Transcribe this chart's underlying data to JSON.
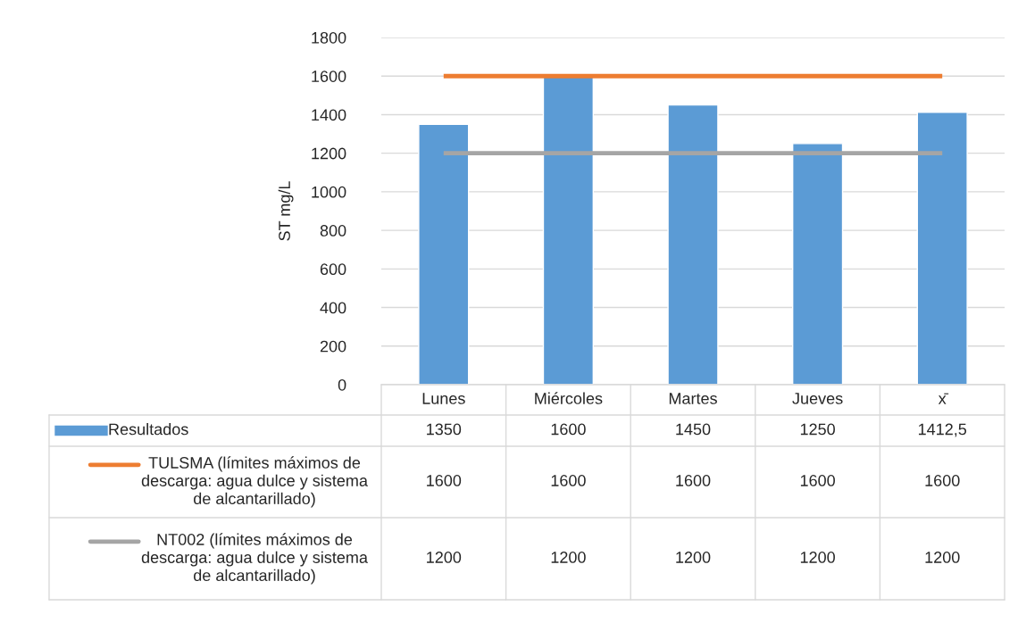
{
  "chart_data": {
    "type": "bar",
    "ylabel": "ST mg/L",
    "categories": [
      "Lunes",
      "Miércoles",
      "Martes",
      "Jueves",
      "x̄"
    ],
    "series": [
      {
        "name": "Resultados",
        "color": "#5b9bd5",
        "values": [
          1350,
          1600,
          1450,
          1250,
          1412.5
        ],
        "value_labels": [
          "1350",
          "1600",
          "1450",
          "1250",
          "1412,5"
        ]
      },
      {
        "name": "TULSMA (límites máximos de descarga: agua dulce y sistema de alcantarillado)",
        "type": "line",
        "color": "#ed7d31",
        "values": [
          1600,
          1600,
          1600,
          1600,
          1600
        ],
        "value_labels": [
          "1600",
          "1600",
          "1600",
          "1600",
          "1600"
        ]
      },
      {
        "name": "NT002 (límites máximos de descarga: agua dulce y sistema de alcantarillado)",
        "type": "line",
        "color": "#a5a5a5",
        "values": [
          1200,
          1200,
          1200,
          1200,
          1200
        ],
        "value_labels": [
          "1200",
          "1200",
          "1200",
          "1200",
          "1200"
        ]
      }
    ],
    "ylim": [
      0,
      1800
    ],
    "yticks": [
      0,
      200,
      400,
      600,
      800,
      1000,
      1200,
      1400,
      1600,
      1800
    ],
    "grid": "y",
    "legend": "bottom"
  }
}
